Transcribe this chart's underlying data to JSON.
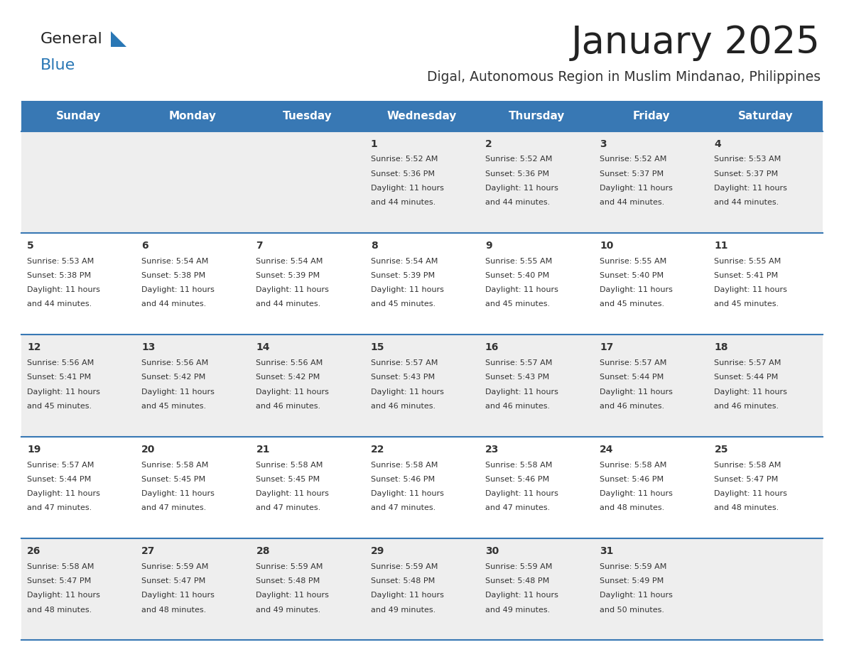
{
  "title": "January 2025",
  "subtitle": "Digal, Autonomous Region in Muslim Mindanao, Philippines",
  "header_bg_color": "#3878b4",
  "header_text_color": "#ffffff",
  "row_bg_odd": "#eeeeee",
  "row_bg_even": "#ffffff",
  "border_color": "#3878b4",
  "text_color": "#333333",
  "day_names": [
    "Sunday",
    "Monday",
    "Tuesday",
    "Wednesday",
    "Thursday",
    "Friday",
    "Saturday"
  ],
  "days": [
    {
      "day": 1,
      "col": 3,
      "row": 0,
      "sunrise": "5:52 AM",
      "sunset": "5:36 PM",
      "daylight_min": "44"
    },
    {
      "day": 2,
      "col": 4,
      "row": 0,
      "sunrise": "5:52 AM",
      "sunset": "5:36 PM",
      "daylight_min": "44"
    },
    {
      "day": 3,
      "col": 5,
      "row": 0,
      "sunrise": "5:52 AM",
      "sunset": "5:37 PM",
      "daylight_min": "44"
    },
    {
      "day": 4,
      "col": 6,
      "row": 0,
      "sunrise": "5:53 AM",
      "sunset": "5:37 PM",
      "daylight_min": "44"
    },
    {
      "day": 5,
      "col": 0,
      "row": 1,
      "sunrise": "5:53 AM",
      "sunset": "5:38 PM",
      "daylight_min": "44"
    },
    {
      "day": 6,
      "col": 1,
      "row": 1,
      "sunrise": "5:54 AM",
      "sunset": "5:38 PM",
      "daylight_min": "44"
    },
    {
      "day": 7,
      "col": 2,
      "row": 1,
      "sunrise": "5:54 AM",
      "sunset": "5:39 PM",
      "daylight_min": "44"
    },
    {
      "day": 8,
      "col": 3,
      "row": 1,
      "sunrise": "5:54 AM",
      "sunset": "5:39 PM",
      "daylight_min": "45"
    },
    {
      "day": 9,
      "col": 4,
      "row": 1,
      "sunrise": "5:55 AM",
      "sunset": "5:40 PM",
      "daylight_min": "45"
    },
    {
      "day": 10,
      "col": 5,
      "row": 1,
      "sunrise": "5:55 AM",
      "sunset": "5:40 PM",
      "daylight_min": "45"
    },
    {
      "day": 11,
      "col": 6,
      "row": 1,
      "sunrise": "5:55 AM",
      "sunset": "5:41 PM",
      "daylight_min": "45"
    },
    {
      "day": 12,
      "col": 0,
      "row": 2,
      "sunrise": "5:56 AM",
      "sunset": "5:41 PM",
      "daylight_min": "45"
    },
    {
      "day": 13,
      "col": 1,
      "row": 2,
      "sunrise": "5:56 AM",
      "sunset": "5:42 PM",
      "daylight_min": "45"
    },
    {
      "day": 14,
      "col": 2,
      "row": 2,
      "sunrise": "5:56 AM",
      "sunset": "5:42 PM",
      "daylight_min": "46"
    },
    {
      "day": 15,
      "col": 3,
      "row": 2,
      "sunrise": "5:57 AM",
      "sunset": "5:43 PM",
      "daylight_min": "46"
    },
    {
      "day": 16,
      "col": 4,
      "row": 2,
      "sunrise": "5:57 AM",
      "sunset": "5:43 PM",
      "daylight_min": "46"
    },
    {
      "day": 17,
      "col": 5,
      "row": 2,
      "sunrise": "5:57 AM",
      "sunset": "5:44 PM",
      "daylight_min": "46"
    },
    {
      "day": 18,
      "col": 6,
      "row": 2,
      "sunrise": "5:57 AM",
      "sunset": "5:44 PM",
      "daylight_min": "46"
    },
    {
      "day": 19,
      "col": 0,
      "row": 3,
      "sunrise": "5:57 AM",
      "sunset": "5:44 PM",
      "daylight_min": "47"
    },
    {
      "day": 20,
      "col": 1,
      "row": 3,
      "sunrise": "5:58 AM",
      "sunset": "5:45 PM",
      "daylight_min": "47"
    },
    {
      "day": 21,
      "col": 2,
      "row": 3,
      "sunrise": "5:58 AM",
      "sunset": "5:45 PM",
      "daylight_min": "47"
    },
    {
      "day": 22,
      "col": 3,
      "row": 3,
      "sunrise": "5:58 AM",
      "sunset": "5:46 PM",
      "daylight_min": "47"
    },
    {
      "day": 23,
      "col": 4,
      "row": 3,
      "sunrise": "5:58 AM",
      "sunset": "5:46 PM",
      "daylight_min": "47"
    },
    {
      "day": 24,
      "col": 5,
      "row": 3,
      "sunrise": "5:58 AM",
      "sunset": "5:46 PM",
      "daylight_min": "48"
    },
    {
      "day": 25,
      "col": 6,
      "row": 3,
      "sunrise": "5:58 AM",
      "sunset": "5:47 PM",
      "daylight_min": "48"
    },
    {
      "day": 26,
      "col": 0,
      "row": 4,
      "sunrise": "5:58 AM",
      "sunset": "5:47 PM",
      "daylight_min": "48"
    },
    {
      "day": 27,
      "col": 1,
      "row": 4,
      "sunrise": "5:59 AM",
      "sunset": "5:47 PM",
      "daylight_min": "48"
    },
    {
      "day": 28,
      "col": 2,
      "row": 4,
      "sunrise": "5:59 AM",
      "sunset": "5:48 PM",
      "daylight_min": "49"
    },
    {
      "day": 29,
      "col": 3,
      "row": 4,
      "sunrise": "5:59 AM",
      "sunset": "5:48 PM",
      "daylight_min": "49"
    },
    {
      "day": 30,
      "col": 4,
      "row": 4,
      "sunrise": "5:59 AM",
      "sunset": "5:48 PM",
      "daylight_min": "49"
    },
    {
      "day": 31,
      "col": 5,
      "row": 4,
      "sunrise": "5:59 AM",
      "sunset": "5:49 PM",
      "daylight_min": "50"
    }
  ],
  "num_rows": 5,
  "num_cols": 7,
  "logo_general_color": "#222222",
  "logo_blue_color": "#2977b5",
  "logo_triangle_color": "#2977b5",
  "title_color": "#222222",
  "subtitle_color": "#333333"
}
